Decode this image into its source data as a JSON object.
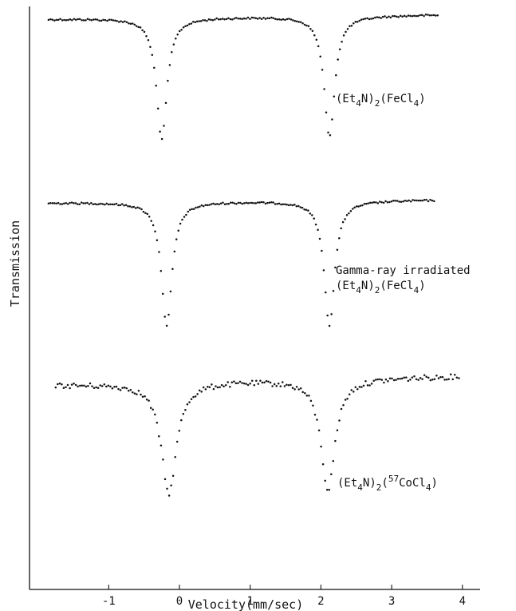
{
  "chart_data": {
    "type": "scatter",
    "xlabel": "Velocity(mm/sec)",
    "ylabel": "Transmission",
    "xlim": [
      -1.95,
      4.3
    ],
    "xticks": [
      -1,
      0,
      1,
      2,
      3,
      4
    ],
    "xtick_labels": [
      "-1",
      "0",
      "1",
      "2",
      "3",
      "4"
    ],
    "grid": false,
    "legend": "none",
    "series": [
      {
        "name_lines": [
          [
            {
              "t": "(Et"
            },
            {
              "t": "4",
              "sub": true
            },
            {
              "t": "N)"
            },
            {
              "t": "2",
              "sub": true
            },
            {
              "t": "(FeCl"
            },
            {
              "t": "4",
              "sub": true
            },
            {
              "t": ")"
            }
          ]
        ],
        "x_range": [
          -1.85,
          3.65
        ],
        "n_points": 200,
        "dips": [
          {
            "center": -0.25,
            "depth": 0.82,
            "width": 0.09
          },
          {
            "center": 2.12,
            "depth": 0.82,
            "width": 0.09
          }
        ],
        "tilt": 0.03,
        "noise": 0.006
      },
      {
        "name_lines": [
          [
            {
              "t": "Gamma-ray irradiated"
            }
          ],
          [
            {
              "t": "(Et"
            },
            {
              "t": "4",
              "sub": true
            },
            {
              "t": "N)"
            },
            {
              "t": "2",
              "sub": true
            },
            {
              "t": "(FeCl"
            },
            {
              "t": "4",
              "sub": true
            },
            {
              "t": ")"
            }
          ]
        ],
        "x_range": [
          -1.85,
          3.6
        ],
        "n_points": 200,
        "dips": [
          {
            "center": -0.18,
            "depth": 0.84,
            "width": 0.09
          },
          {
            "center": 2.12,
            "depth": 0.84,
            "width": 0.09
          }
        ],
        "tilt": 0.02,
        "noise": 0.006
      },
      {
        "name_lines": [
          [
            {
              "t": "(Et"
            },
            {
              "t": "4",
              "sub": true
            },
            {
              "t": "N)"
            },
            {
              "t": "2",
              "sub": true
            },
            {
              "t": "("
            },
            {
              "t": "57",
              "sup": true
            },
            {
              "t": "CoCl"
            },
            {
              "t": "4",
              "sub": true
            },
            {
              "t": ")"
            }
          ]
        ],
        "x_range": [
          -1.75,
          3.95
        ],
        "n_points": 200,
        "dips": [
          {
            "center": -0.15,
            "depth": 0.75,
            "width": 0.13
          },
          {
            "center": 2.1,
            "depth": 0.75,
            "width": 0.12
          }
        ],
        "tilt": 0.06,
        "noise": 0.018
      }
    ]
  }
}
